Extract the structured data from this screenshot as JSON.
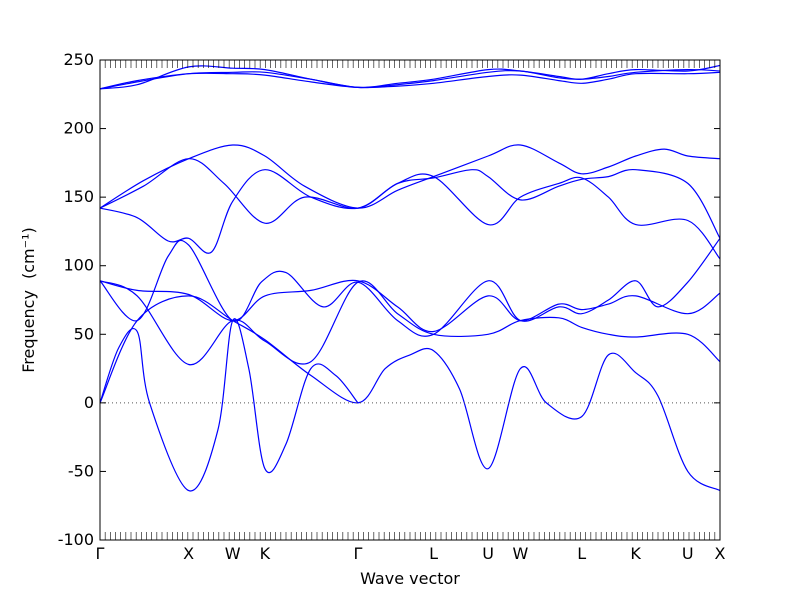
{
  "chart_data": {
    "type": "line",
    "title": "",
    "xlabel": "Wave vector",
    "ylabel": "Frequency",
    "ylabel_unit": "(cm⁻¹)",
    "ylim": [
      -100,
      250
    ],
    "yticks": [
      -100,
      -50,
      0,
      50,
      100,
      150,
      200,
      250
    ],
    "xlim": [
      0,
      1
    ],
    "xticks": [
      {
        "pos": 0.0,
        "label": "Γ"
      },
      {
        "pos": 0.143,
        "label": "X"
      },
      {
        "pos": 0.214,
        "label": "W"
      },
      {
        "pos": 0.266,
        "label": "K"
      },
      {
        "pos": 0.416,
        "label": "Γ"
      },
      {
        "pos": 0.538,
        "label": "L"
      },
      {
        "pos": 0.626,
        "label": "U"
      },
      {
        "pos": 0.678,
        "label": "W"
      },
      {
        "pos": 0.777,
        "label": "L"
      },
      {
        "pos": 0.864,
        "label": "K"
      },
      {
        "pos": 0.948,
        "label": "U"
      },
      {
        "pos": 1.0,
        "label": "X"
      }
    ],
    "zero_line": true,
    "color": "#0000ff",
    "series": [
      {
        "x": [
          0,
          0.06,
          0.143,
          0.214,
          0.266,
          0.34,
          0.416,
          0.48,
          0.538,
          0.626,
          0.678,
          0.74,
          0.777,
          0.82,
          0.864,
          0.948,
          1.0
        ],
        "y": [
          229,
          232,
          245,
          244,
          243,
          236,
          230,
          233,
          236,
          243,
          242,
          238,
          236,
          240,
          243,
          242,
          246
        ]
      },
      {
        "x": [
          0,
          0.06,
          0.143,
          0.214,
          0.266,
          0.34,
          0.416,
          0.48,
          0.538,
          0.626,
          0.678,
          0.74,
          0.777,
          0.82,
          0.864,
          0.948,
          1.0
        ],
        "y": [
          229,
          234,
          240,
          241,
          241,
          236,
          230,
          232,
          235,
          241,
          242,
          237,
          236,
          238,
          241,
          243,
          242
        ]
      },
      {
        "x": [
          0,
          0.06,
          0.143,
          0.214,
          0.266,
          0.34,
          0.416,
          0.48,
          0.538,
          0.626,
          0.678,
          0.74,
          0.777,
          0.82,
          0.864,
          0.948,
          1.0
        ],
        "y": [
          229,
          235,
          240,
          240,
          239,
          234,
          230,
          231,
          233,
          238,
          239,
          235,
          233,
          236,
          240,
          240,
          241
        ]
      },
      {
        "x": [
          0,
          0.07,
          0.143,
          0.214,
          0.266,
          0.33,
          0.416,
          0.48,
          0.538,
          0.626,
          0.678,
          0.74,
          0.777,
          0.82,
          0.864,
          0.91,
          0.948,
          1.0
        ],
        "y": [
          142,
          162,
          178,
          188,
          180,
          158,
          142,
          155,
          165,
          180,
          188,
          175,
          167,
          172,
          180,
          185,
          180,
          178
        ]
      },
      {
        "x": [
          0,
          0.07,
          0.143,
          0.2,
          0.266,
          0.33,
          0.416,
          0.48,
          0.538,
          0.6,
          0.626,
          0.678,
          0.74,
          0.777,
          0.82,
          0.864,
          0.948,
          1.0
        ],
        "y": [
          142,
          158,
          178,
          160,
          131,
          150,
          142,
          160,
          164,
          170,
          165,
          148,
          158,
          163,
          165,
          170,
          160,
          120
        ]
      },
      {
        "x": [
          0,
          0.06,
          0.11,
          0.143,
          0.18,
          0.214,
          0.266,
          0.34,
          0.416,
          0.48,
          0.538,
          0.626,
          0.678,
          0.74,
          0.777,
          0.82,
          0.864,
          0.948,
          1.0
        ],
        "y": [
          142,
          135,
          118,
          120,
          110,
          147,
          170,
          150,
          142,
          160,
          165,
          130,
          150,
          160,
          164,
          150,
          130,
          133,
          105
        ]
      },
      {
        "x": [
          0,
          0.06,
          0.11,
          0.143,
          0.214,
          0.26,
          0.3,
          0.36,
          0.416,
          0.48,
          0.538,
          0.626,
          0.678,
          0.74,
          0.777,
          0.82,
          0.864,
          0.9,
          0.948,
          1.0
        ],
        "y": [
          89,
          60,
          107,
          115,
          60,
          88,
          95,
          70,
          88,
          60,
          50,
          89,
          60,
          70,
          65,
          75,
          89,
          70,
          88,
          120
        ]
      },
      {
        "x": [
          0,
          0.06,
          0.143,
          0.214,
          0.266,
          0.34,
          0.416,
          0.48,
          0.538,
          0.626,
          0.678,
          0.74,
          0.777,
          0.82,
          0.864,
          0.948,
          1.0
        ],
        "y": [
          89,
          82,
          79,
          60,
          78,
          82,
          89,
          70,
          52,
          78,
          60,
          72,
          68,
          72,
          78,
          65,
          80
        ]
      },
      {
        "x": [
          0,
          0.06,
          0.143,
          0.214,
          0.266,
          0.34,
          0.416,
          0.48,
          0.538,
          0.626,
          0.678,
          0.74,
          0.777,
          0.82,
          0.864,
          0.948,
          1.0
        ],
        "y": [
          89,
          78,
          28,
          60,
          45,
          30,
          88,
          65,
          50,
          50,
          60,
          62,
          55,
          50,
          48,
          50,
          30
        ]
      },
      {
        "x": [
          0,
          0.03,
          0.06,
          0.08,
          0.143,
          0.19,
          0.214,
          0.24,
          0.266,
          0.3,
          0.34,
          0.38,
          0.416
        ],
        "y": [
          0,
          40,
          52,
          0,
          -64,
          -20,
          60,
          25,
          -48,
          -30,
          25,
          20,
          0
        ]
      },
      {
        "x": [
          0,
          0.06,
          0.143,
          0.214,
          0.266,
          0.34,
          0.416,
          0.46,
          0.5,
          0.538,
          0.58,
          0.626,
          0.678,
          0.72,
          0.777,
          0.82,
          0.864,
          0.9,
          0.948,
          1.0
        ],
        "y": [
          0,
          60,
          78,
          60,
          46,
          20,
          0,
          25,
          35,
          38,
          10,
          -48,
          25,
          0,
          -10,
          35,
          22,
          5,
          -50,
          -64
        ]
      }
    ]
  }
}
